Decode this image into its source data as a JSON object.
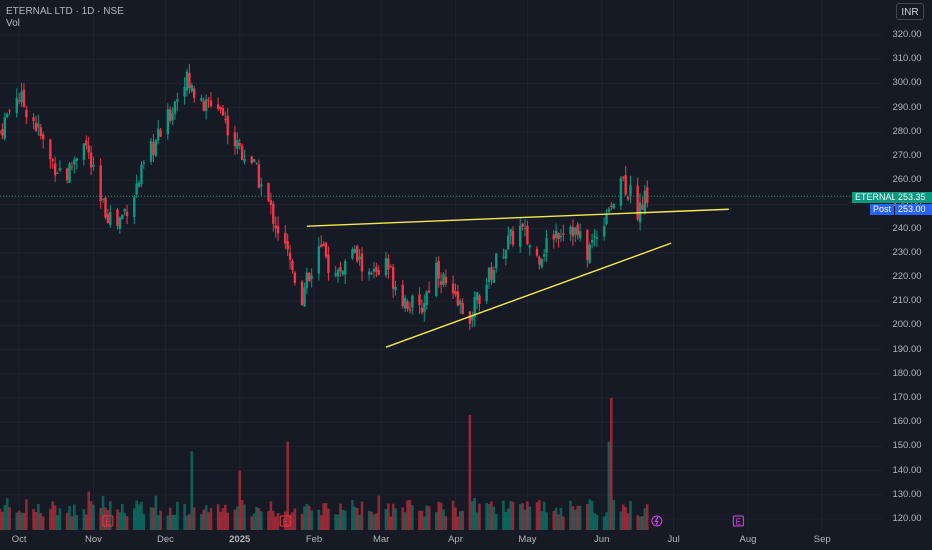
{
  "header": {
    "symbol_line": "ETERNAL LTD · 1D · NSE",
    "indicator": "Vol"
  },
  "currency_button": "INR",
  "y_axis": {
    "ticks": [
      "320.00",
      "310.00",
      "300.00",
      "290.00",
      "280.00",
      "270.00",
      "260.00",
      "250.00",
      "240.00",
      "230.00",
      "220.00",
      "210.00",
      "200.00",
      "190.00",
      "180.00",
      "170.00",
      "160.00",
      "150.00",
      "140.00",
      "130.00",
      "120.00"
    ]
  },
  "x_axis": {
    "ticks": [
      "Oct",
      "Nov",
      "Dec",
      "2025",
      "Feb",
      "Mar",
      "Apr",
      "May",
      "Jun",
      "Jul",
      "Aug",
      "Sep"
    ]
  },
  "price_tags": {
    "symbol": "ETERNAL",
    "last_price": "253.35",
    "post_label": "Post",
    "post_price": "253.00"
  },
  "markers": {
    "earnings_label": "E"
  },
  "colors": {
    "background": "#161a25",
    "up": "#089981",
    "down": "#f23645",
    "trendline": "#f5e94a",
    "post_tag": "#2962ff",
    "earnings_marker": "#e040fb"
  },
  "chart_data": {
    "type": "candlestick",
    "title": "ETERNAL LTD · 1D · NSE",
    "currency": "INR",
    "ylim": [
      115,
      325
    ],
    "grid": true,
    "series": [
      {
        "name": "ETERNAL",
        "note": "approximate daily closes read from chart",
        "path": [
          [
            "2024-09-23",
            280
          ],
          [
            "2024-09-30",
            296
          ],
          [
            "2024-10-07",
            285
          ],
          [
            "2024-10-14",
            268
          ],
          [
            "2024-10-21",
            262
          ],
          [
            "2024-10-28",
            278
          ],
          [
            "2024-11-04",
            250
          ],
          [
            "2024-11-11",
            242
          ],
          [
            "2024-11-18",
            255
          ],
          [
            "2024-11-25",
            272
          ],
          [
            "2024-12-02",
            285
          ],
          [
            "2024-12-09",
            303
          ],
          [
            "2024-12-16",
            290
          ],
          [
            "2024-12-23",
            292
          ],
          [
            "2024-12-30",
            275
          ],
          [
            "2025-01-06",
            268
          ],
          [
            "2025-01-13",
            250
          ],
          [
            "2025-01-20",
            232
          ],
          [
            "2025-01-27",
            212
          ],
          [
            "2025-02-03",
            232
          ],
          [
            "2025-02-10",
            220
          ],
          [
            "2025-02-17",
            230
          ],
          [
            "2025-02-24",
            220
          ],
          [
            "2025-03-03",
            225
          ],
          [
            "2025-03-10",
            212
          ],
          [
            "2025-03-17",
            205
          ],
          [
            "2025-03-24",
            225
          ],
          [
            "2025-03-31",
            210
          ],
          [
            "2025-04-07",
            205
          ],
          [
            "2025-04-14",
            218
          ],
          [
            "2025-04-21",
            232
          ],
          [
            "2025-04-28",
            240
          ],
          [
            "2025-05-05",
            228
          ],
          [
            "2025-05-12",
            238
          ],
          [
            "2025-05-19",
            242
          ],
          [
            "2025-05-26",
            230
          ],
          [
            "2025-06-02",
            245
          ],
          [
            "2025-06-09",
            262
          ],
          [
            "2025-06-16",
            248
          ],
          [
            "2025-06-20",
            253.35
          ]
        ],
        "volume_spikes": [
          [
            "2024-12-12",
            148
          ],
          [
            "2025-01-01",
            140
          ],
          [
            "2025-01-21",
            152
          ],
          [
            "2025-04-07",
            163
          ],
          [
            "2025-06-04",
            152
          ],
          [
            "2025-06-05",
            170
          ]
        ]
      }
    ],
    "trendlines": [
      {
        "from": [
          "2025-01-29",
          241
        ],
        "to": [
          "2025-07-24",
          248
        ]
      },
      {
        "from": [
          "2025-03-03",
          191
        ],
        "to": [
          "2025-06-30",
          234
        ]
      }
    ],
    "last_price": 253.35,
    "post_price": 253.0
  }
}
